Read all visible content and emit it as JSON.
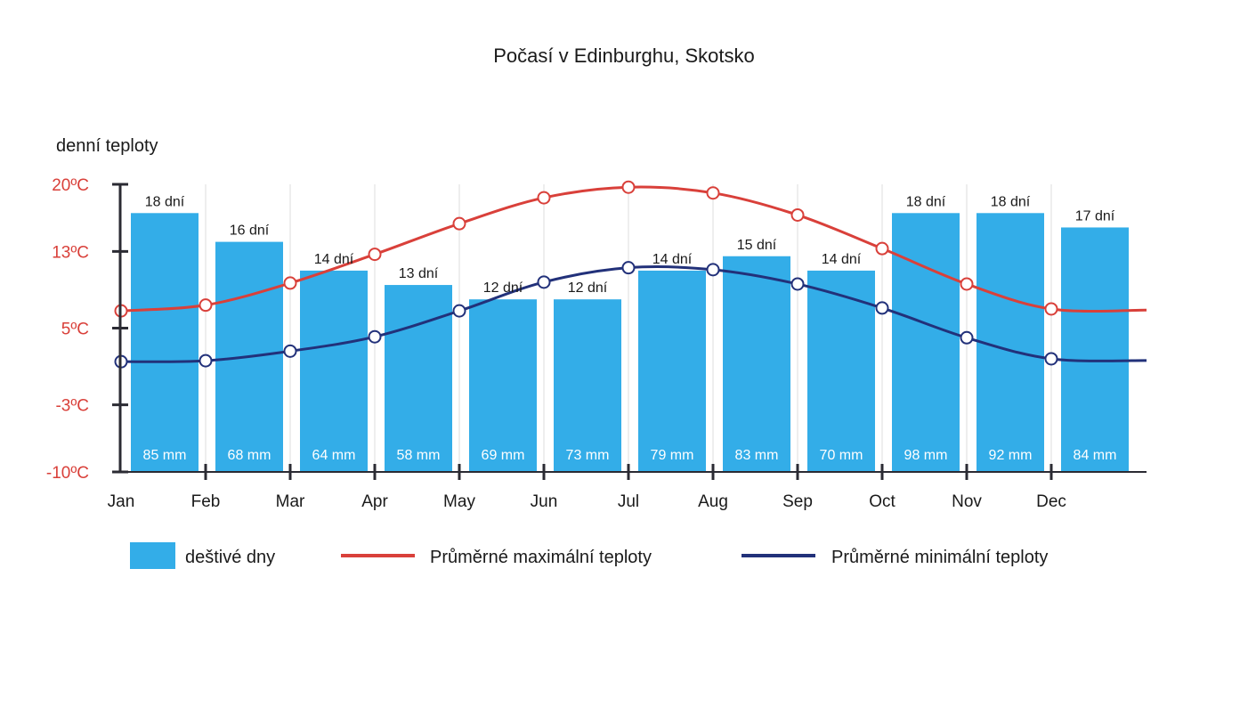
{
  "chart_data": {
    "type": "bar",
    "title": "Počasí v Edinburghu, Skotsko",
    "ylabel": "denní teploty",
    "ylim": [
      -10,
      20
    ],
    "yticks": [
      "20ºC",
      "13ºC",
      "5ºC",
      "-3ºC",
      "-10ºC"
    ],
    "ytick_values": [
      20,
      13,
      5,
      -3,
      -10
    ],
    "categories": [
      "Jan",
      "Feb",
      "Mar",
      "Apr",
      "May",
      "Jun",
      "Jul",
      "Aug",
      "Sep",
      "Oct",
      "Nov",
      "Dec"
    ],
    "rainy_days": [
      18,
      16,
      14,
      13,
      12,
      12,
      14,
      15,
      14,
      18,
      18,
      17
    ],
    "rainy_days_labels": [
      "18 dní",
      "16 dní",
      "14 dní",
      "13 dní",
      "12 dní",
      "12 dní",
      "14 dní",
      "15 dní",
      "14 dní",
      "18 dní",
      "18 dní",
      "17 dní"
    ],
    "precipitation_labels": [
      "85 mm",
      "68 mm",
      "64 mm",
      "58 mm",
      "69 mm",
      "73 mm",
      "79 mm",
      "83 mm",
      "70 mm",
      "98 mm",
      "92 mm",
      "84 mm"
    ],
    "series": [
      {
        "name": "Průměrné maximální teploty",
        "color": "#d9403a",
        "values": [
          6.8,
          7.4,
          9.7,
          12.7,
          15.9,
          18.6,
          19.7,
          19.1,
          16.8,
          13.3,
          9.6,
          7.0
        ]
      },
      {
        "name": "Průměrné minimální teploty",
        "color": "#22317a",
        "values": [
          1.5,
          1.6,
          2.6,
          4.1,
          6.8,
          9.8,
          11.3,
          11.1,
          9.6,
          7.1,
          4.0,
          1.8
        ]
      }
    ],
    "legend": [
      {
        "label": "deštivé dny",
        "color": "#33ade8"
      },
      {
        "label": "Průměrné maximální teploty",
        "color": "#d9403a"
      },
      {
        "label": "Průměrné minimální teploty",
        "color": "#22317a"
      }
    ],
    "legend_position": "bottom",
    "grid": "vertical"
  }
}
